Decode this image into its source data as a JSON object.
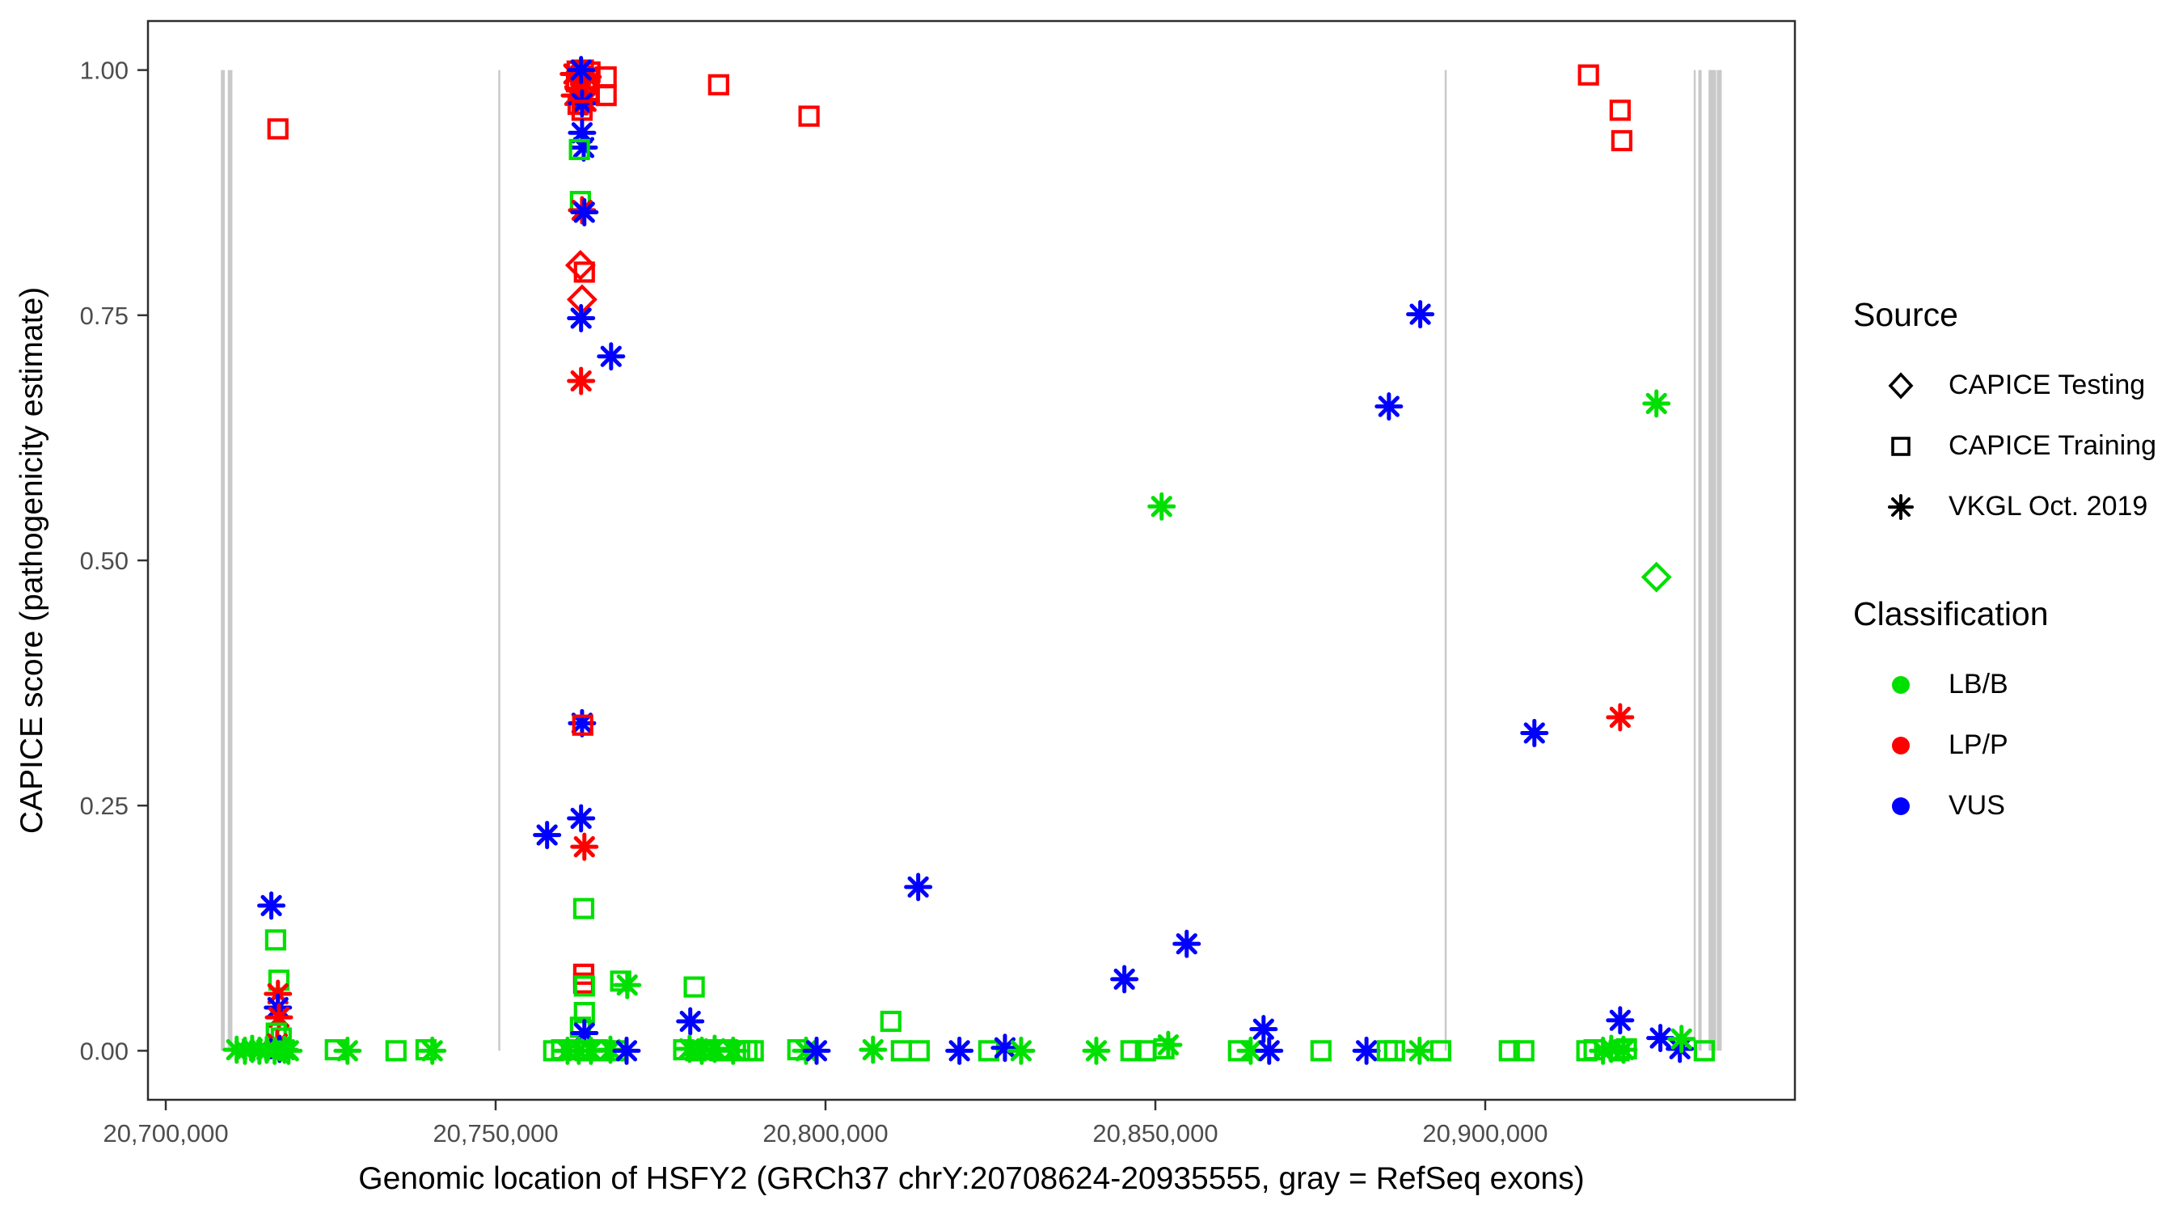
{
  "colors": {
    "LB/B": "#00E000",
    "LP/P": "#FF0000",
    "VUS": "#0000FF",
    "exon": "#C9C9C9",
    "tick_label": "#4D4D4D",
    "panel_border": "#2E2E2E",
    "legend_key": "#000000"
  },
  "legend": {
    "source": {
      "title": "Source",
      "items": [
        {
          "shape": "diamond",
          "label": "CAPICE Testing"
        },
        {
          "shape": "square",
          "label": "CAPICE Training"
        },
        {
          "shape": "asterisk",
          "label": "VKGL Oct. 2019"
        }
      ]
    },
    "classification": {
      "title": "Classification",
      "items": [
        {
          "color": "#00E000",
          "label": "LB/B"
        },
        {
          "color": "#FF0000",
          "label": "LP/P"
        },
        {
          "color": "#0000FF",
          "label": "VUS"
        }
      ]
    }
  },
  "chart_data": {
    "type": "scatter",
    "x_title": "Genomic location of HSFY2 (GRCh37 chrY:20708624-20935555, gray = RefSeq exons)",
    "y_title": "CAPICE score (pathogenicity estimate)",
    "x_domain": [
      20697300,
      20946940
    ],
    "y_domain": [
      -0.05,
      1.05
    ],
    "x_ticks": [
      {
        "value": 20700000,
        "label": "20,700,000"
      },
      {
        "value": 20750000,
        "label": "20,750,000"
      },
      {
        "value": 20800000,
        "label": "20,800,000"
      },
      {
        "value": 20850000,
        "label": "20,850,000"
      },
      {
        "value": 20900000,
        "label": "20,900,000"
      }
    ],
    "y_ticks": [
      {
        "value": 0.0,
        "label": "0.00"
      },
      {
        "value": 0.25,
        "label": "0.25"
      },
      {
        "value": 0.5,
        "label": "0.50"
      },
      {
        "value": 0.75,
        "label": "0.75"
      },
      {
        "value": 1.0,
        "label": "1.00"
      }
    ],
    "shape_by_source": {
      "testing": "diamond",
      "training": "square",
      "vkgl": "asterisk"
    },
    "refseq_exons_bp": [
      [
        20708350,
        20708950
      ],
      [
        20709400,
        20710100
      ],
      [
        20750400,
        20750650
      ],
      [
        20893850,
        20894100
      ],
      [
        20931600,
        20931850
      ],
      [
        20932300,
        20932800
      ],
      [
        20933850,
        20935000
      ],
      [
        20935100,
        20935850
      ]
    ],
    "points": [
      [
        20717000,
        0.94,
        "training",
        "LP/P"
      ],
      [
        20716000,
        0.148,
        "vkgl",
        "VUS"
      ],
      [
        20716650,
        0.113,
        "training",
        "LB/B"
      ],
      [
        20717150,
        0.072,
        "training",
        "LB/B"
      ],
      [
        20717000,
        0.058,
        "vkgl",
        "LP/P"
      ],
      [
        20717000,
        0.044,
        "vkgl",
        "VUS"
      ],
      [
        20717150,
        0.034,
        "vkgl",
        "LP/P"
      ],
      [
        20716750,
        0.018,
        "training",
        "LB/B"
      ],
      [
        20717500,
        0.013,
        "training",
        "LB/B"
      ],
      [
        20716900,
        0.007,
        "vkgl",
        "LP/P"
      ],
      [
        20717250,
        0.002,
        "vkgl",
        "VUS"
      ],
      [
        20710750,
        0.001,
        "vkgl",
        "LB/B"
      ],
      [
        20712000,
        0.0,
        "vkgl",
        "LB/B"
      ],
      [
        20713100,
        0.002,
        "vkgl",
        "LB/B"
      ],
      [
        20714200,
        0.0,
        "vkgl",
        "LB/B"
      ],
      [
        20715300,
        0.001,
        "vkgl",
        "LB/B"
      ],
      [
        20716500,
        0.0,
        "vkgl",
        "LB/B"
      ],
      [
        20718000,
        0.001,
        "vkgl",
        "LB/B"
      ],
      [
        20718600,
        0.0,
        "vkgl",
        "LB/B"
      ],
      [
        20725700,
        0.001,
        "training",
        "LB/B"
      ],
      [
        20727550,
        0.0,
        "vkgl",
        "LB/B"
      ],
      [
        20734900,
        0.0,
        "training",
        "LB/B"
      ],
      [
        20739450,
        0.001,
        "training",
        "LB/B"
      ],
      [
        20740400,
        0.0,
        "vkgl",
        "LB/B"
      ],
      [
        20762350,
        0.999,
        "training",
        "LP/P"
      ],
      [
        20763300,
        1.0,
        "training",
        "LP/P"
      ],
      [
        20764300,
        0.998,
        "training",
        "LP/P"
      ],
      [
        20761850,
        0.996,
        "vkgl",
        "LP/P"
      ],
      [
        20762850,
        0.994,
        "vkgl",
        "LP/P"
      ],
      [
        20763950,
        0.993,
        "vkgl",
        "LP/P"
      ],
      [
        20762250,
        0.988,
        "training",
        "LP/P"
      ],
      [
        20763600,
        0.986,
        "training",
        "LP/P"
      ],
      [
        20762600,
        0.981,
        "vkgl",
        "LP/P"
      ],
      [
        20764200,
        0.979,
        "training",
        "LP/P"
      ],
      [
        20762000,
        0.974,
        "vkgl",
        "LP/P"
      ],
      [
        20763100,
        0.973,
        "training",
        "LP/P"
      ],
      [
        20763700,
        0.968,
        "vkgl",
        "LP/P"
      ],
      [
        20762500,
        0.965,
        "training",
        "LP/P"
      ],
      [
        20762950,
        1.0,
        "vkgl",
        "VUS"
      ],
      [
        20763100,
        0.966,
        "vkgl",
        "VUS"
      ],
      [
        20763100,
        0.959,
        "training",
        "LP/P"
      ],
      [
        20766750,
        0.993,
        "training",
        "LP/P"
      ],
      [
        20766750,
        0.974,
        "training",
        "LP/P"
      ],
      [
        20783800,
        0.985,
        "training",
        "LP/P"
      ],
      [
        20797500,
        0.953,
        "training",
        "LP/P"
      ],
      [
        20763100,
        0.936,
        "vkgl",
        "VUS"
      ],
      [
        20763350,
        0.921,
        "vkgl",
        "VUS"
      ],
      [
        20762700,
        0.919,
        "training",
        "LB/B"
      ],
      [
        20762850,
        0.866,
        "training",
        "LB/B"
      ],
      [
        20763100,
        0.857,
        "vkgl",
        "LP/P"
      ],
      [
        20763450,
        0.855,
        "vkgl",
        "VUS"
      ],
      [
        20762850,
        0.801,
        "testing",
        "LP/P"
      ],
      [
        20763450,
        0.794,
        "training",
        "LP/P"
      ],
      [
        20763100,
        0.766,
        "testing",
        "LP/P"
      ],
      [
        20762950,
        0.747,
        "vkgl",
        "VUS"
      ],
      [
        20767500,
        0.708,
        "vkgl",
        "VUS"
      ],
      [
        20762950,
        0.683,
        "vkgl",
        "LP/P"
      ],
      [
        20763100,
        0.334,
        "vkgl",
        "VUS"
      ],
      [
        20763200,
        0.332,
        "training",
        "LP/P"
      ],
      [
        20762950,
        0.237,
        "vkgl",
        "VUS"
      ],
      [
        20757800,
        0.22,
        "vkgl",
        "VUS"
      ],
      [
        20763450,
        0.208,
        "vkgl",
        "LP/P"
      ],
      [
        20763350,
        0.145,
        "training",
        "LB/B"
      ],
      [
        20763350,
        0.078,
        "training",
        "LP/P"
      ],
      [
        20763350,
        0.069,
        "training",
        "LP/P"
      ],
      [
        20763450,
        0.066,
        "training",
        "LB/B"
      ],
      [
        20768950,
        0.071,
        "training",
        "LB/B"
      ],
      [
        20769950,
        0.067,
        "vkgl",
        "LB/B"
      ],
      [
        20780100,
        0.065,
        "training",
        "LB/B"
      ],
      [
        20763450,
        0.039,
        "training",
        "LB/B"
      ],
      [
        20762850,
        0.024,
        "training",
        "LB/B"
      ],
      [
        20763450,
        0.018,
        "vkgl",
        "VUS"
      ],
      [
        20758800,
        0.0,
        "training",
        "LB/B"
      ],
      [
        20760000,
        0.001,
        "training",
        "LB/B"
      ],
      [
        20760900,
        0.0,
        "vkgl",
        "LB/B"
      ],
      [
        20761850,
        0.001,
        "training",
        "LB/B"
      ],
      [
        20762600,
        0.0,
        "vkgl",
        "LB/B"
      ],
      [
        20763600,
        0.0,
        "training",
        "LB/B"
      ],
      [
        20764450,
        0.0,
        "vkgl",
        "LB/B"
      ],
      [
        20765400,
        0.001,
        "training",
        "LB/B"
      ],
      [
        20766400,
        0.0,
        "training",
        "LB/B"
      ],
      [
        20767400,
        0.001,
        "vkgl",
        "LB/B"
      ],
      [
        20768350,
        0.0,
        "training",
        "LB/B"
      ],
      [
        20769850,
        0.0,
        "vkgl",
        "VUS"
      ],
      [
        20779500,
        0.03,
        "vkgl",
        "VUS"
      ],
      [
        20778500,
        0.001,
        "training",
        "LB/B"
      ],
      [
        20779400,
        0.002,
        "vkgl",
        "LB/B"
      ],
      [
        20780350,
        0.0,
        "training",
        "LB/B"
      ],
      [
        20781250,
        0.0,
        "vkgl",
        "LB/B"
      ],
      [
        20782200,
        0.001,
        "training",
        "LB/B"
      ],
      [
        20783200,
        0.002,
        "vkgl",
        "LB/B"
      ],
      [
        20784050,
        0.0,
        "training",
        "LB/B"
      ],
      [
        20785150,
        0.001,
        "training",
        "LB/B"
      ],
      [
        20786000,
        0.0,
        "vkgl",
        "LB/B"
      ],
      [
        20787000,
        0.0,
        "training",
        "LB/B"
      ],
      [
        20788100,
        0.0,
        "training",
        "LB/B"
      ],
      [
        20789050,
        0.0,
        "training",
        "LB/B"
      ],
      [
        20795800,
        0.001,
        "training",
        "LB/B"
      ],
      [
        20797050,
        0.0,
        "vkgl",
        "LB/B"
      ],
      [
        20798650,
        0.0,
        "vkgl",
        "VUS"
      ],
      [
        20807200,
        0.001,
        "vkgl",
        "LB/B"
      ],
      [
        20809900,
        0.03,
        "training",
        "LB/B"
      ],
      [
        20811500,
        0.0,
        "training",
        "LB/B"
      ],
      [
        20814200,
        0.0,
        "training",
        "LB/B"
      ],
      [
        20814050,
        0.167,
        "vkgl",
        "VUS"
      ],
      [
        20820300,
        0.0,
        "vkgl",
        "VUS"
      ],
      [
        20824750,
        0.0,
        "training",
        "LB/B"
      ],
      [
        20827200,
        0.003,
        "vkgl",
        "VUS"
      ],
      [
        20829650,
        0.0,
        "vkgl",
        "LB/B"
      ],
      [
        20841050,
        0.0,
        "vkgl",
        "LB/B"
      ],
      [
        20845300,
        0.073,
        "vkgl",
        "VUS"
      ],
      [
        20846300,
        0.0,
        "training",
        "LB/B"
      ],
      [
        20848500,
        0.0,
        "training",
        "LB/B"
      ],
      [
        20850950,
        0.555,
        "vkgl",
        "LB/B"
      ],
      [
        20851950,
        0.006,
        "vkgl",
        "LB/B"
      ],
      [
        20851300,
        0.002,
        "training",
        "LB/B"
      ],
      [
        20854750,
        0.109,
        "vkgl",
        "VUS"
      ],
      [
        20862600,
        0.0,
        "training",
        "LB/B"
      ],
      [
        20864450,
        0.0,
        "vkgl",
        "LB/B"
      ],
      [
        20866400,
        0.022,
        "vkgl",
        "VUS"
      ],
      [
        20867250,
        0.0,
        "vkgl",
        "VUS"
      ],
      [
        20875100,
        0.0,
        "training",
        "LB/B"
      ],
      [
        20882000,
        0.0,
        "vkgl",
        "VUS"
      ],
      [
        20885150,
        0.0,
        "training",
        "LB/B"
      ],
      [
        20886250,
        0.0,
        "training",
        "LB/B"
      ],
      [
        20885400,
        0.657,
        "vkgl",
        "VUS"
      ],
      [
        20890050,
        0.0,
        "vkgl",
        "LB/B"
      ],
      [
        20890150,
        0.751,
        "vkgl",
        "VUS"
      ],
      [
        20893250,
        0.0,
        "training",
        "LB/B"
      ],
      [
        20903650,
        0.0,
        "training",
        "LB/B"
      ],
      [
        20905850,
        0.0,
        "training",
        "LB/B"
      ],
      [
        20907450,
        0.324,
        "vkgl",
        "VUS"
      ],
      [
        20915650,
        0.995,
        "training",
        "LP/P"
      ],
      [
        20920450,
        0.34,
        "vkgl",
        "LP/P"
      ],
      [
        20920450,
        0.959,
        "training",
        "LP/P"
      ],
      [
        20920700,
        0.928,
        "training",
        "LP/P"
      ],
      [
        20920450,
        0.031,
        "vkgl",
        "VUS"
      ],
      [
        20915400,
        0.0,
        "training",
        "LB/B"
      ],
      [
        20916500,
        0.001,
        "training",
        "LB/B"
      ],
      [
        20917850,
        0.0,
        "vkgl",
        "LB/B"
      ],
      [
        20919100,
        0.002,
        "vkgl",
        "LB/B"
      ],
      [
        20920300,
        0.0,
        "training",
        "LB/B"
      ],
      [
        20920950,
        0.001,
        "vkgl",
        "LB/B"
      ],
      [
        20921400,
        0.002,
        "training",
        "LB/B"
      ],
      [
        20925950,
        0.66,
        "vkgl",
        "LB/B"
      ],
      [
        20925950,
        0.483,
        "testing",
        "LB/B"
      ],
      [
        20926550,
        0.013,
        "vkgl",
        "VUS"
      ],
      [
        20929500,
        0.002,
        "vkgl",
        "VUS"
      ],
      [
        20929750,
        0.012,
        "vkgl",
        "LB/B"
      ],
      [
        20933200,
        0.0,
        "training",
        "LB/B"
      ]
    ]
  }
}
